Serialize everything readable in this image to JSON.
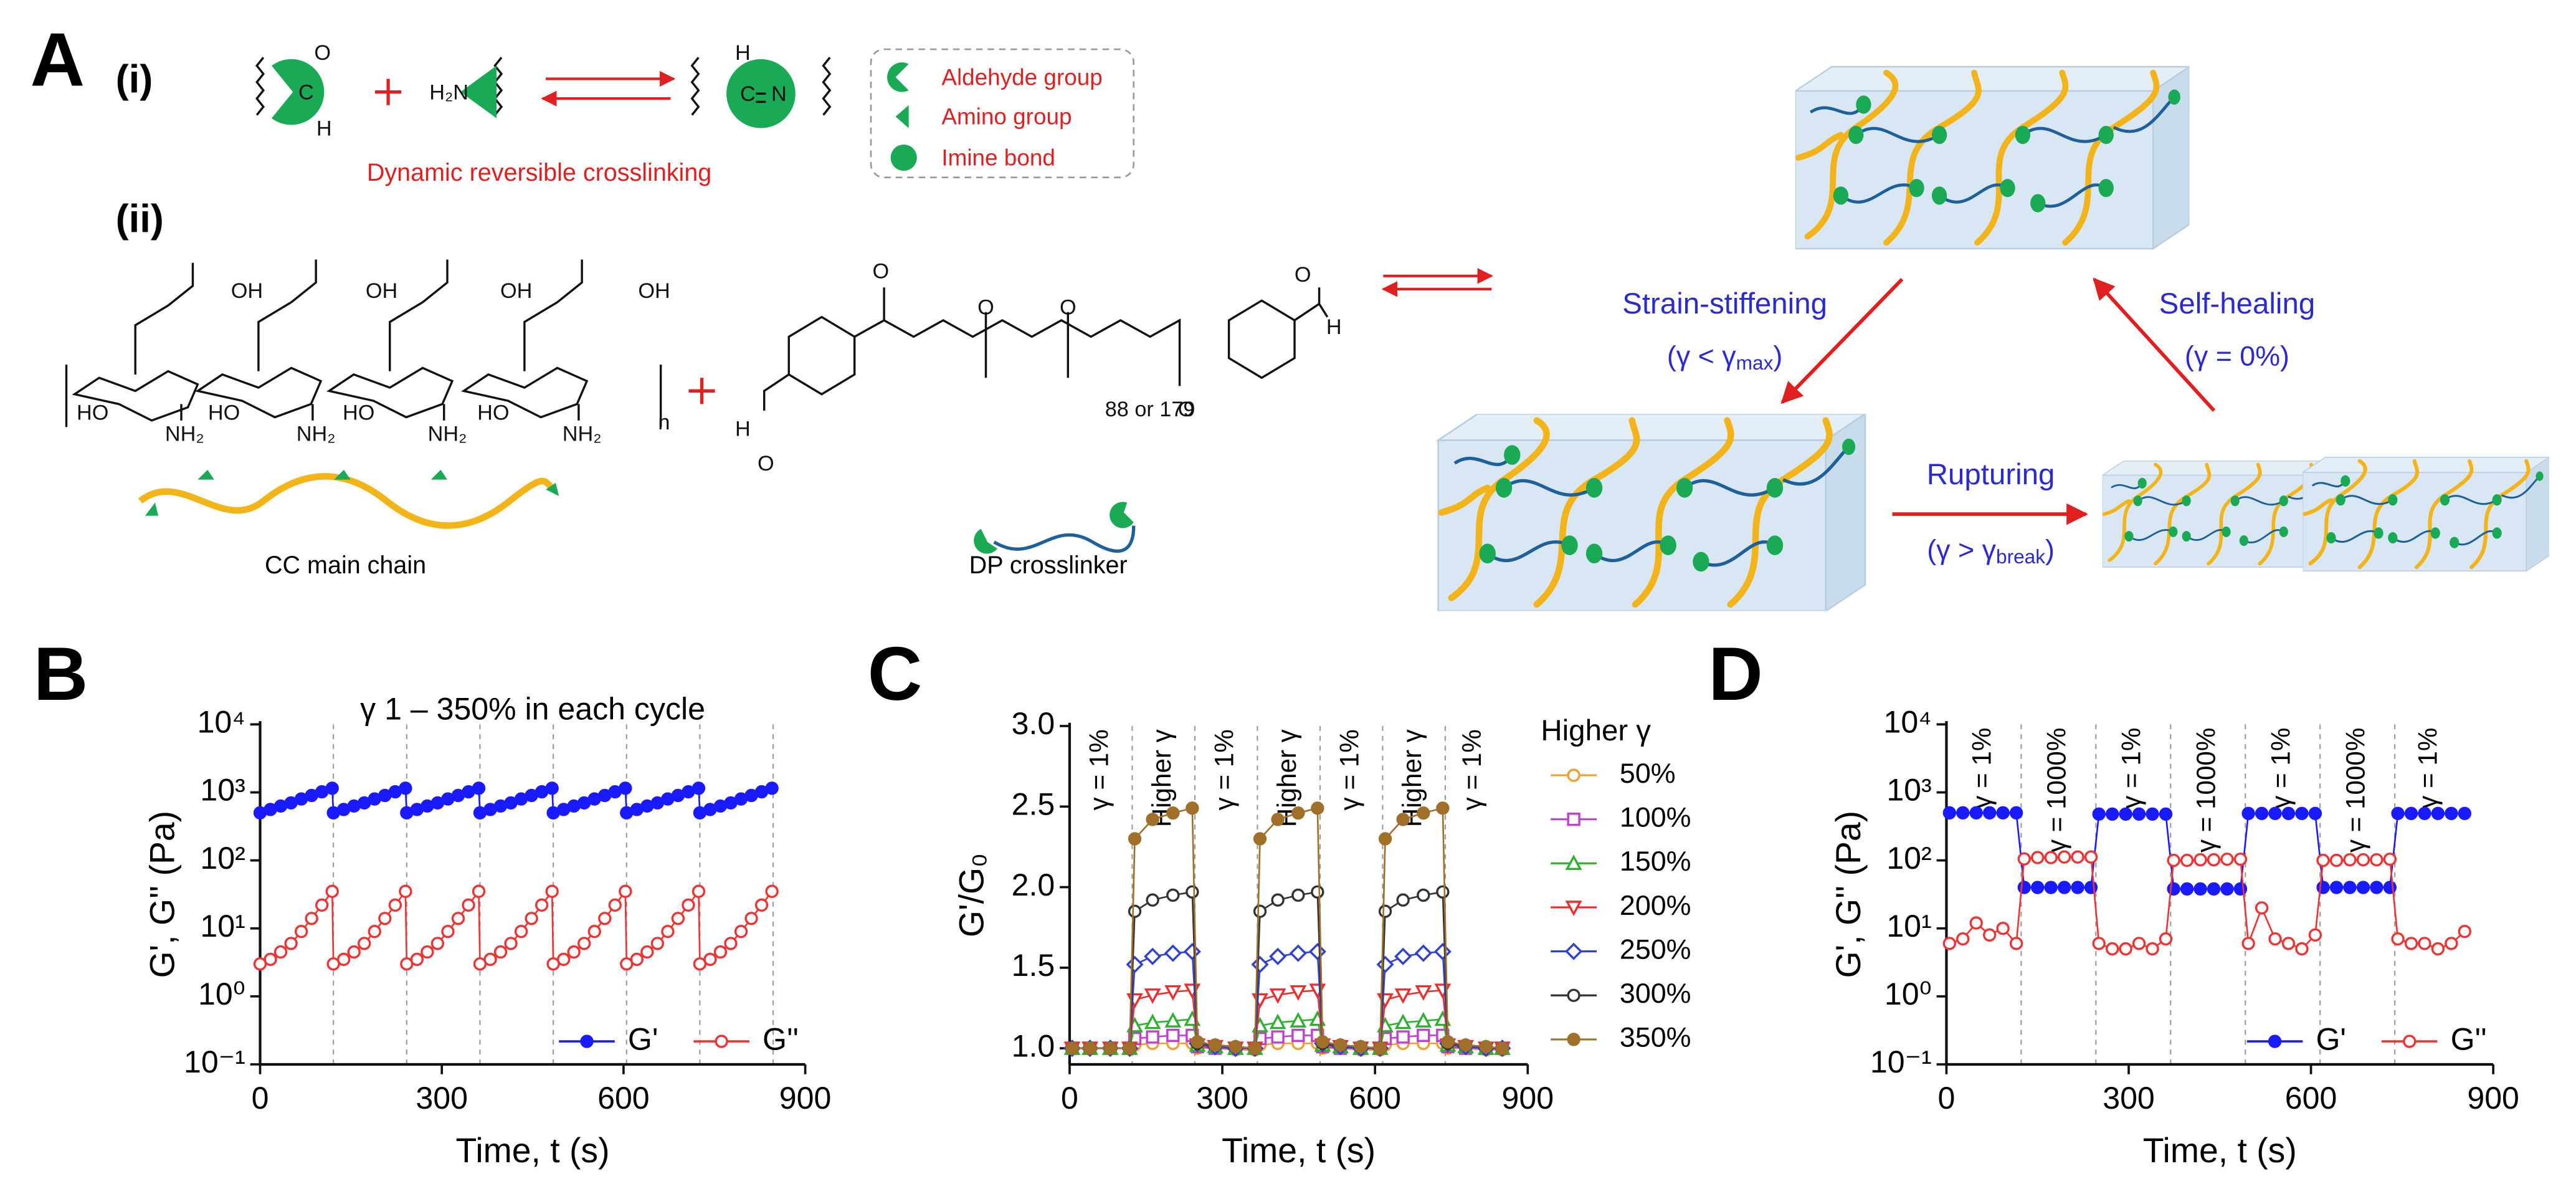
{
  "diagram": {
    "panel": "A",
    "label_i": "(i)",
    "label_ii": "(ii)",
    "caption_i": "Dynamic reversible crosslinking",
    "legend": [
      "Aldehyde group",
      "Amino group",
      "Imine bond"
    ],
    "cc_label": "CC main chain",
    "dp_label": "DP crosslinker",
    "strain_stiffening": "Strain-stiffening",
    "strain_condition": {
      "text": "(γ < γ",
      "sub": "max",
      "end": ")"
    },
    "self_healing": "Self-healing",
    "self_healing_condition": "(γ = 0%)",
    "rupturing": "Rupturing",
    "rupturing_condition": {
      "text": "(γ > γ",
      "sub": "break",
      "end": ")"
    },
    "chem": [
      "O",
      "C",
      "H",
      "H₂N",
      "H",
      "C",
      "N",
      "OH",
      "OH",
      "OH",
      "OH",
      "HO",
      "HO",
      "HO",
      "HO",
      "NH₂",
      "NH₂",
      "NH₂",
      "NH₂",
      "n",
      "H",
      "O",
      "O",
      "O",
      "O",
      "O",
      "O",
      "H",
      "88 or 179"
    ]
  },
  "chart_data": [
    {
      "panel": "B",
      "type": "line",
      "title": "γ 1 – 350% in each cycle",
      "xlabel": "Time, t (s)",
      "ylabel": "G', G'' (Pa)",
      "x": [
        0,
        17,
        34,
        51,
        68,
        85,
        102,
        119,
        121,
        138,
        155,
        172,
        189,
        206,
        223,
        240,
        242,
        259,
        276,
        293,
        310,
        327,
        344,
        361,
        363,
        380,
        397,
        414,
        431,
        448,
        465,
        482,
        484,
        501,
        518,
        535,
        552,
        569,
        586,
        603,
        605,
        622,
        639,
        656,
        673,
        690,
        707,
        724,
        726,
        743,
        760,
        777,
        794,
        811,
        828,
        845
      ],
      "series": [
        {
          "name": "G'",
          "color": "#1a1aff",
          "marker": "filled-circle",
          "values": [
            500,
            560,
            630,
            700,
            800,
            900,
            1020,
            1150,
            500,
            560,
            630,
            700,
            800,
            900,
            1020,
            1150,
            500,
            560,
            630,
            700,
            800,
            900,
            1020,
            1150,
            500,
            560,
            630,
            700,
            800,
            900,
            1020,
            1150,
            500,
            560,
            630,
            700,
            800,
            900,
            1020,
            1150,
            500,
            560,
            630,
            700,
            800,
            900,
            1020,
            1150,
            500,
            560,
            630,
            700,
            800,
            900,
            1020,
            1150
          ]
        },
        {
          "name": "G''",
          "color": "#ee3333",
          "marker": "open-circle",
          "values": [
            3,
            3.5,
            4.5,
            6,
            9,
            14,
            22,
            35,
            3,
            3.5,
            4.5,
            6,
            9,
            14,
            22,
            35,
            3,
            3.5,
            4.5,
            6,
            9,
            14,
            22,
            35,
            3,
            3.5,
            4.5,
            6,
            9,
            14,
            22,
            35,
            3,
            3.5,
            4.5,
            6,
            9,
            14,
            22,
            35,
            3,
            3.5,
            4.5,
            6,
            9,
            14,
            22,
            35,
            3,
            3.5,
            4.5,
            6,
            9,
            14,
            22,
            35
          ]
        }
      ],
      "xlim": [
        0,
        900
      ],
      "xticks": [
        0,
        300,
        600,
        900
      ],
      "ylim": [
        0.1,
        10000
      ],
      "yticks": [
        {
          "value": 0.1,
          "label": "10⁻¹"
        },
        {
          "value": 1,
          "label": "10⁰"
        },
        {
          "value": 10,
          "label": "10¹"
        },
        {
          "value": 100,
          "label": "10²"
        },
        {
          "value": 1000,
          "label": "10³"
        },
        {
          "value": 10000,
          "label": "10⁴"
        }
      ],
      "log_y": true,
      "vlines": [
        121,
        242,
        363,
        484,
        605,
        726,
        847
      ],
      "legend": "lower right"
    },
    {
      "panel": "C",
      "type": "line",
      "xlabel": "Time, t (s)",
      "ylabel": "G'/G₀",
      "legend_title": "Higher γ",
      "x": [
        5,
        40,
        80,
        118,
        128,
        163,
        203,
        241,
        251,
        286,
        326,
        364,
        374,
        409,
        449,
        487,
        497,
        532,
        572,
        610,
        620,
        655,
        695,
        733,
        743,
        778,
        818,
        850
      ],
      "series": [
        {
          "name": "50%",
          "color": "#f0a030",
          "marker": "open-circle",
          "values": [
            1,
            1,
            1,
            1,
            1.02,
            1.03,
            1.03,
            1.03,
            1,
            1,
            0.99,
            0.99,
            1.02,
            1.03,
            1.03,
            1.03,
            1,
            1,
            0.99,
            0.99,
            1.02,
            1.03,
            1.03,
            1.03,
            1,
            1,
            0.99,
            0.99
          ]
        },
        {
          "name": "100%",
          "color": "#c040d0",
          "marker": "square",
          "values": [
            1,
            1,
            1,
            1,
            1.06,
            1.07,
            1.08,
            1.08,
            1.01,
            1,
            1,
            1,
            1.06,
            1.07,
            1.08,
            1.08,
            1.01,
            1,
            1,
            1,
            1.06,
            1.07,
            1.08,
            1.08,
            1.01,
            1,
            1,
            1
          ]
        },
        {
          "name": "150%",
          "color": "#30b030",
          "marker": "triangle",
          "values": [
            1,
            1,
            1,
            1,
            1.14,
            1.16,
            1.17,
            1.18,
            1.02,
            1.01,
            1,
            1,
            1.14,
            1.16,
            1.17,
            1.18,
            1.02,
            1.01,
            1,
            1,
            1.14,
            1.16,
            1.17,
            1.18,
            1.02,
            1.01,
            1,
            1
          ]
        },
        {
          "name": "200%",
          "color": "#e83030",
          "marker": "down-triangle",
          "values": [
            1,
            1,
            1,
            1,
            1.3,
            1.33,
            1.35,
            1.36,
            1.02,
            1.01,
            1,
            1,
            1.3,
            1.33,
            1.35,
            1.36,
            1.02,
            1.01,
            1,
            1,
            1.3,
            1.33,
            1.35,
            1.36,
            1.02,
            1.01,
            1,
            1
          ]
        },
        {
          "name": "250%",
          "color": "#3040d0",
          "marker": "diamond",
          "values": [
            1,
            1,
            1,
            1,
            1.52,
            1.57,
            1.59,
            1.6,
            1.03,
            1.01,
            1,
            1,
            1.52,
            1.57,
            1.59,
            1.6,
            1.03,
            1.01,
            1,
            1,
            1.52,
            1.57,
            1.59,
            1.6,
            1.03,
            1.01,
            1,
            1
          ]
        },
        {
          "name": "300%",
          "color": "#333333",
          "marker": "open-circle",
          "values": [
            1,
            1,
            1,
            1,
            1.85,
            1.92,
            1.95,
            1.97,
            1.03,
            1.02,
            1.01,
            1,
            1.85,
            1.92,
            1.95,
            1.97,
            1.03,
            1.02,
            1.01,
            1,
            1.85,
            1.92,
            1.95,
            1.97,
            1.03,
            1.02,
            1.01,
            1
          ]
        },
        {
          "name": "350%",
          "color": "#a0702a",
          "marker": "filled-circle",
          "values": [
            1,
            1,
            1,
            1,
            2.3,
            2.42,
            2.46,
            2.49,
            1.04,
            1.02,
            1.01,
            1,
            2.3,
            2.42,
            2.46,
            2.49,
            1.04,
            1.02,
            1.01,
            1,
            2.3,
            2.42,
            2.46,
            2.49,
            1.04,
            1.02,
            1.01,
            1
          ]
        }
      ],
      "xlim": [
        0,
        900
      ],
      "xticks": [
        0,
        300,
        600,
        900
      ],
      "ylim": [
        0.9,
        3.0
      ],
      "yticks": [
        {
          "value": 1,
          "label": "1.0"
        },
        1.5,
        {
          "value": 2,
          "label": "2.0"
        },
        2.5,
        {
          "value": 3,
          "label": "3.0"
        }
      ],
      "vlines": [
        123,
        246,
        369,
        492,
        615,
        738
      ],
      "segment_labels": [
        "γ = 1%",
        "Higher γ",
        "γ = 1%",
        "Higher γ",
        "γ = 1%",
        "Higher γ",
        "γ = 1%"
      ],
      "legend": "right"
    },
    {
      "panel": "D",
      "type": "line",
      "xlabel": "Time, t (s)",
      "ylabel": "G', G'' (Pa)",
      "x": [
        5,
        27,
        49,
        71,
        93,
        115,
        128,
        150,
        172,
        194,
        216,
        238,
        251,
        273,
        295,
        317,
        339,
        361,
        374,
        396,
        418,
        440,
        462,
        484,
        497,
        519,
        541,
        563,
        585,
        607,
        620,
        642,
        664,
        686,
        708,
        730,
        743,
        765,
        787,
        809,
        831,
        853
      ],
      "series": [
        {
          "name": "G'",
          "color": "#1a1aff",
          "marker": "filled-circle",
          "values": [
            500,
            500,
            500,
            500,
            500,
            500,
            40,
            40,
            40,
            40,
            40,
            40,
            480,
            480,
            480,
            480,
            480,
            480,
            38,
            38,
            38,
            38,
            38,
            38,
            490,
            490,
            490,
            490,
            490,
            490,
            40,
            40,
            40,
            40,
            40,
            40,
            490,
            490,
            490,
            490,
            490,
            490
          ]
        },
        {
          "name": "G''",
          "color": "#ee3333",
          "marker": "open-circle",
          "values": [
            6,
            7,
            12,
            8,
            10,
            6,
            105,
            110,
            110,
            112,
            112,
            112,
            6,
            5,
            5,
            6,
            5,
            7,
            100,
            100,
            102,
            102,
            104,
            104,
            6,
            20,
            7,
            6,
            5,
            8,
            100,
            100,
            102,
            102,
            102,
            104,
            7,
            6,
            6,
            5,
            6,
            9
          ]
        }
      ],
      "xlim": [
        0,
        900
      ],
      "xticks": [
        0,
        300,
        600,
        900
      ],
      "ylim": [
        0.1,
        10000
      ],
      "yticks": [
        {
          "value": 0.1,
          "label": "10⁻¹"
        },
        {
          "value": 1,
          "label": "10⁰"
        },
        {
          "value": 10,
          "label": "10¹"
        },
        {
          "value": 100,
          "label": "10²"
        },
        {
          "value": 1000,
          "label": "10³"
        },
        {
          "value": 10000,
          "label": "10⁴"
        }
      ],
      "log_y": true,
      "vlines": [
        123,
        246,
        369,
        492,
        615,
        738
      ],
      "segment_labels": [
        "γ = 1%",
        "γ = 1000%",
        "γ = 1%",
        "γ = 1000%",
        "γ = 1%",
        "γ = 1000%",
        "γ = 1%"
      ],
      "legend": "lower right"
    }
  ]
}
